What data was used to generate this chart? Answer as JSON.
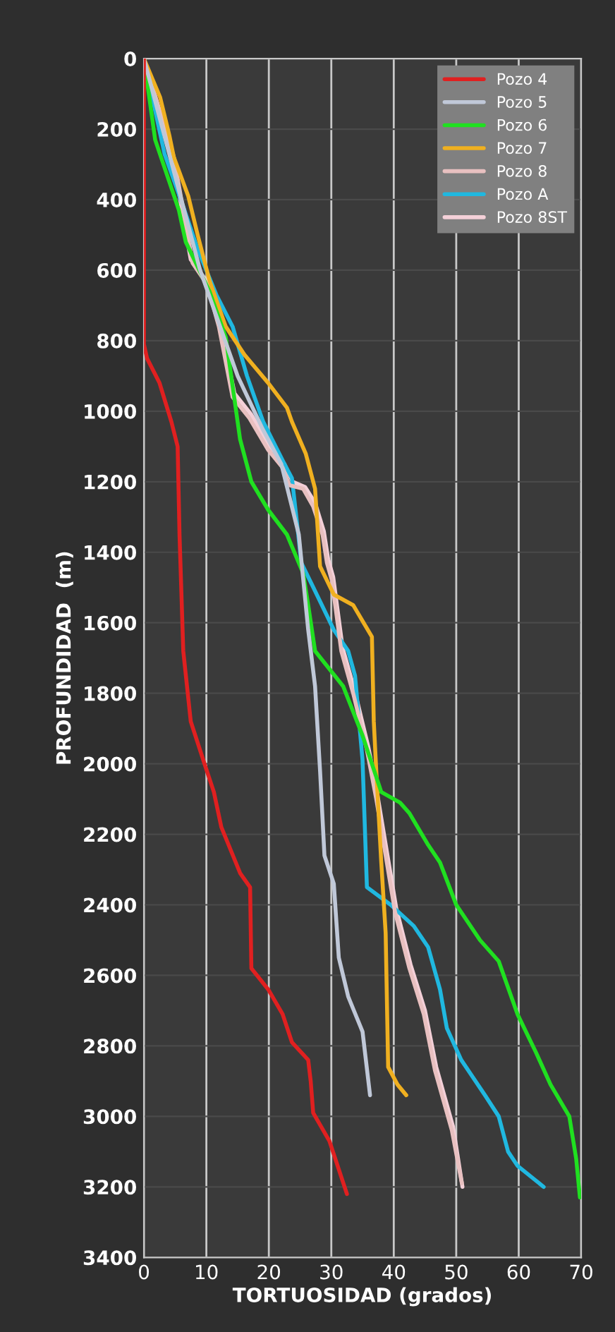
{
  "chart_data": {
    "type": "line",
    "xlabel": "TORTUOSIDAD (grados)",
    "ylabel": "PROFUNDIDAD  (m)",
    "xlim": [
      0,
      70
    ],
    "xticks": [
      0,
      10,
      20,
      30,
      40,
      50,
      60,
      70
    ],
    "ylim": [
      3400,
      0
    ],
    "yticks": [
      0,
      200,
      400,
      600,
      800,
      1000,
      1200,
      1400,
      1600,
      1800,
      2000,
      2200,
      2400,
      2600,
      2800,
      3000,
      3200,
      3400
    ],
    "grid": true,
    "legend": "top right",
    "line_style": "solid",
    "marker": "none",
    "series": [
      {
        "name": "Pozo 4",
        "color": "#e02020",
        "x": [
          0,
          0,
          0.5,
          2.5,
          4.4,
          5.4,
          5.7,
          6.3,
          7.5,
          9.7,
          11.2,
          12.4,
          15.4,
          17,
          17.2,
          19.9,
          22.2,
          23.7,
          26.3,
          26.7,
          27.1,
          29.7,
          32.5
        ],
        "values": [
          0,
          810,
          850,
          920,
          1030,
          1100,
          1350,
          1680,
          1880,
          2000,
          2080,
          2180,
          2310,
          2350,
          2580,
          2640,
          2710,
          2790,
          2840,
          2900,
          2990,
          3070,
          3220
        ]
      },
      {
        "name": "Pozo 5",
        "color": "#c0c8d8",
        "x": [
          0,
          3,
          6,
          9,
          12,
          15,
          19,
          22,
          24.8,
          26.3,
          27.4,
          28.2,
          28.9,
          30.4,
          31.2,
          32.7,
          35,
          36.2
        ],
        "values": [
          0,
          200,
          400,
          600,
          750,
          900,
          1050,
          1150,
          1350,
          1620,
          1780,
          2020,
          2260,
          2340,
          2550,
          2660,
          2760,
          2940
        ]
      },
      {
        "name": "Pozo 6",
        "color": "#20e020",
        "x": [
          0,
          1.8,
          5.6,
          6.7,
          10.5,
          13.1,
          15.4,
          17.2,
          19.9,
          22.9,
          25.5,
          26.3,
          27.4,
          30.1,
          31.9,
          35,
          38,
          41,
          42.5,
          45.5,
          47.4,
          50,
          53.8,
          56.8,
          59.8,
          62.8,
          65.1,
          68.1,
          69.2,
          69.8
        ],
        "values": [
          0,
          230,
          430,
          520,
          660,
          790,
          1080,
          1200,
          1280,
          1350,
          1460,
          1550,
          1680,
          1740,
          1780,
          1920,
          2080,
          2110,
          2140,
          2230,
          2280,
          2400,
          2500,
          2560,
          2710,
          2820,
          2910,
          3000,
          3120,
          3230
        ]
      },
      {
        "name": "Pozo 7",
        "color": "#f0b020",
        "x": [
          0,
          2.6,
          4.1,
          4.8,
          7.1,
          8.6,
          10.5,
          13.1,
          16.1,
          19.9,
          22.9,
          23.7,
          25.9,
          27.4,
          28.2,
          30.4,
          33.5,
          36.5,
          36.8,
          37.2,
          38,
          38.7,
          39.1,
          40.6,
          42
        ],
        "values": [
          0,
          110,
          220,
          280,
          390,
          500,
          630,
          760,
          840,
          920,
          990,
          1030,
          1120,
          1220,
          1440,
          1520,
          1550,
          1640,
          1880,
          2020,
          2280,
          2480,
          2860,
          2910,
          2940
        ]
      },
      {
        "name": "Pozo 8",
        "color": "#e8c0c0",
        "x": [
          0,
          4.8,
          7.8,
          10.1,
          12,
          14.2,
          16.9,
          19.9,
          22.2,
          23.3,
          25.5,
          27.1,
          28.6,
          29.3,
          30.1,
          31.6,
          33.5,
          35.7,
          37.2,
          38.7,
          40.2,
          42.5,
          44.8,
          46.6,
          49.3,
          50.9
        ],
        "values": [
          0,
          280,
          580,
          640,
          760,
          960,
          1020,
          1110,
          1160,
          1210,
          1220,
          1270,
          1350,
          1430,
          1480,
          1680,
          1800,
          1960,
          2100,
          2260,
          2420,
          2580,
          2710,
          2870,
          3040,
          3190
        ]
      },
      {
        "name": "Pozo A",
        "color": "#20b8e0",
        "x": [
          0,
          3.3,
          6.3,
          8.6,
          11.6,
          14.2,
          16.5,
          19.1,
          22.5,
          23.7,
          24.4,
          25.2,
          27.4,
          30.4,
          32.7,
          33.8,
          35,
          35.7,
          39.5,
          43.2,
          45.5,
          47.4,
          48.5,
          50.8,
          54.6,
          56.8,
          58.3,
          59.8,
          64
        ],
        "values": [
          0,
          270,
          420,
          540,
          670,
          760,
          900,
          1030,
          1150,
          1190,
          1300,
          1430,
          1510,
          1620,
          1680,
          1750,
          1990,
          2350,
          2400,
          2460,
          2520,
          2640,
          2750,
          2840,
          2940,
          3000,
          3100,
          3140,
          3200
        ]
      },
      {
        "name": "Pozo 8ST",
        "color": "#f4d0d8",
        "x": [
          0,
          4.5,
          7.5,
          10,
          12.2,
          14.5,
          17.2,
          20.2,
          22.5,
          23.8,
          25.8,
          27.4,
          28.8,
          29.5,
          30.3,
          31.8,
          33.7,
          35.9,
          37.4,
          38.9,
          40.4,
          42.7,
          45,
          46.8,
          49.5,
          51
        ],
        "values": [
          0,
          270,
          570,
          630,
          750,
          950,
          1010,
          1100,
          1150,
          1200,
          1215,
          1260,
          1340,
          1420,
          1470,
          1670,
          1790,
          1950,
          2090,
          2250,
          2410,
          2570,
          2700,
          2860,
          3030,
          3200
        ]
      }
    ]
  }
}
